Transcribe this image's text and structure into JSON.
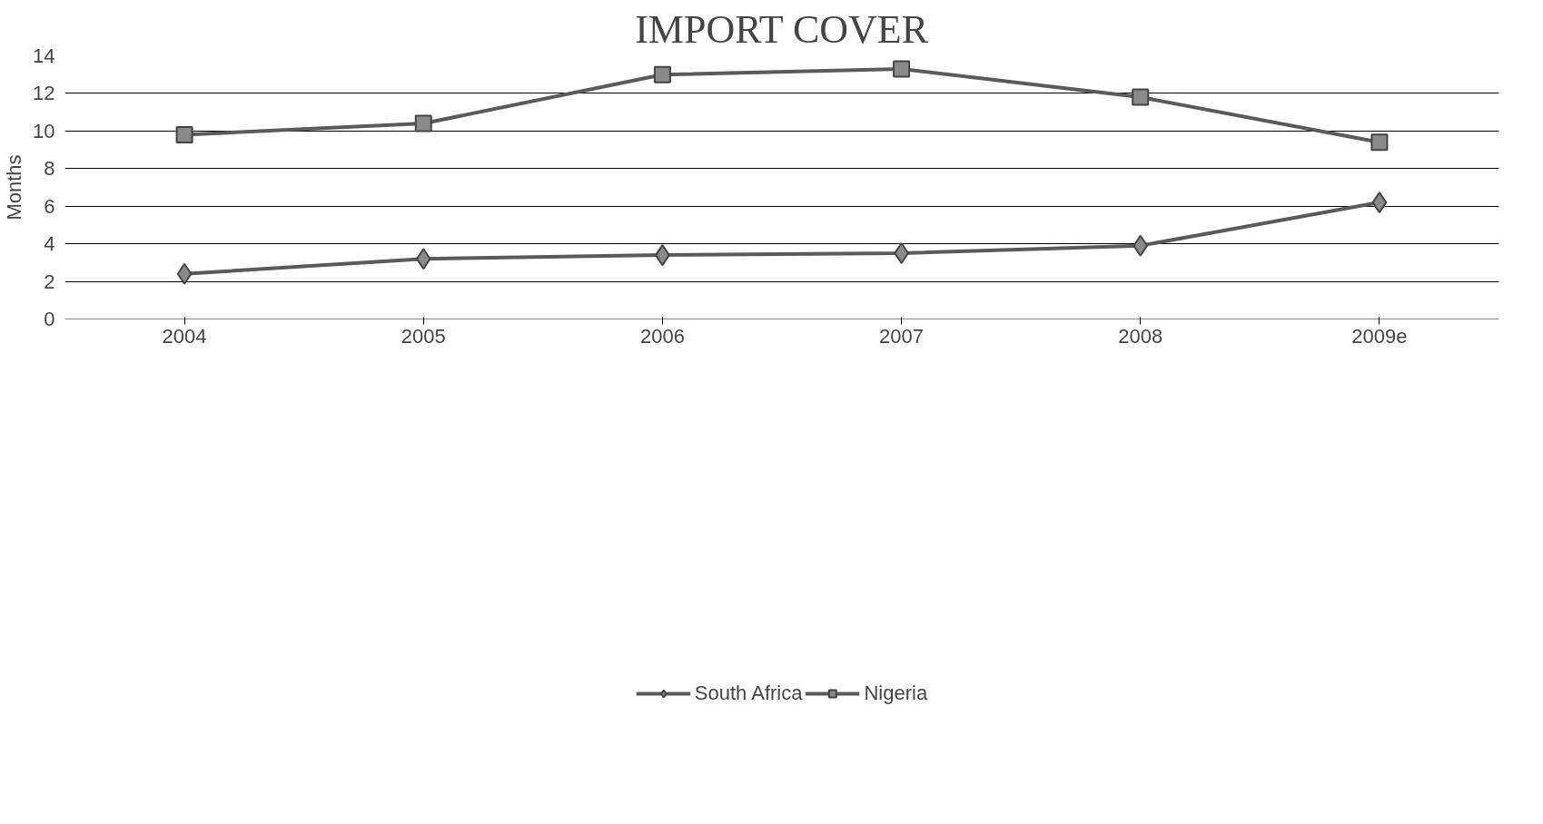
{
  "chart_data": {
    "type": "line",
    "title": "IMPORT COVER",
    "ylabel": "Months",
    "categories": [
      "2004",
      "2005",
      "2006",
      "2007",
      "2008",
      "2009e"
    ],
    "series": [
      {
        "name": "South Africa",
        "color": "#5a5a5a",
        "marker": "diamond",
        "values": [
          2.4,
          3.2,
          3.4,
          3.5,
          3.9,
          6.2
        ]
      },
      {
        "name": "Nigeria",
        "color": "#5a5a5a",
        "marker": "square",
        "values": [
          9.8,
          10.4,
          13.0,
          13.3,
          11.8,
          9.4
        ]
      }
    ],
    "ylim": [
      0,
      14
    ],
    "yticks": [
      0,
      2,
      4,
      6,
      8,
      10,
      12,
      14
    ],
    "grid": "y",
    "legend": "bottom",
    "line_style": "solid"
  }
}
